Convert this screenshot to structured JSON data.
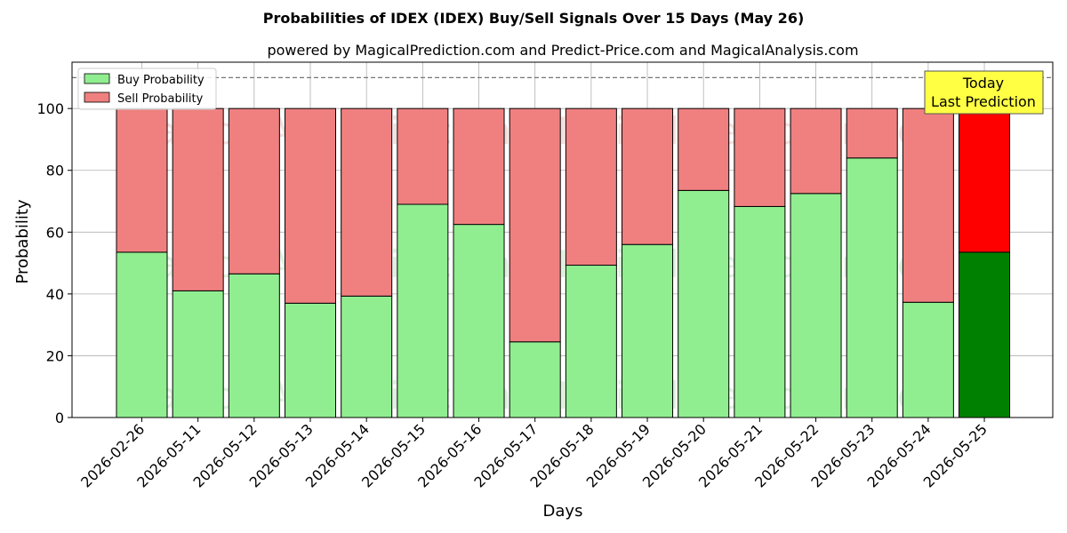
{
  "title": "Probabilities of IDEX (IDEX) Buy/Sell Signals Over 15 Days (May 26)",
  "subtitle": "powered by MagicalPrediction.com and Predict-Price.com and MagicalAnalysis.com",
  "watermarks": [
    "MagicalAnalysis.com",
    "MagicalPrediction.com"
  ],
  "annotation": {
    "line1": "Today",
    "line2": "Last Prediction"
  },
  "colors": {
    "buy": "#90ee90",
    "sell": "#f08080",
    "buy_last": "#008000",
    "sell_last": "#ff0000",
    "annotation_bg": "#ffff44",
    "ref_line": "#777777"
  },
  "chart_data": {
    "type": "bar",
    "stacked": true,
    "xlabel": "Days",
    "ylabel": "Probability",
    "ylim": [
      0,
      115
    ],
    "yticks": [
      0,
      20,
      40,
      60,
      80,
      100
    ],
    "reference_line": 110,
    "grid": true,
    "legend_position": "top-left",
    "categories": [
      "2026-02-26",
      "2026-05-11",
      "2026-05-12",
      "2026-05-13",
      "2026-05-14",
      "2026-05-15",
      "2026-05-16",
      "2026-05-17",
      "2026-05-18",
      "2026-05-19",
      "2026-05-20",
      "2026-05-21",
      "2026-05-22",
      "2026-05-23",
      "2026-05-24",
      "2026-05-25"
    ],
    "series": [
      {
        "name": "Buy Probability",
        "values": [
          53.5,
          41,
          46.5,
          37,
          39.3,
          69,
          62.5,
          24.5,
          49.3,
          56,
          73.5,
          68.3,
          72.5,
          84,
          37.3,
          53.5
        ]
      },
      {
        "name": "Sell Probability",
        "values": [
          46.5,
          59,
          53.5,
          63,
          60.7,
          31,
          37.5,
          75.5,
          50.7,
          44,
          26.5,
          31.7,
          27.5,
          16,
          62.7,
          46.5
        ]
      }
    ]
  }
}
